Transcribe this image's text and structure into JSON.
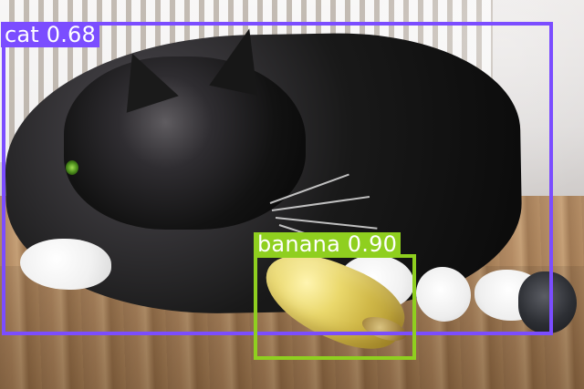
{
  "detections": [
    {
      "label": "cat 0.68",
      "color": "#7b4dff"
    },
    {
      "label": "banana 0.90",
      "color": "#8fcf1f"
    }
  ]
}
